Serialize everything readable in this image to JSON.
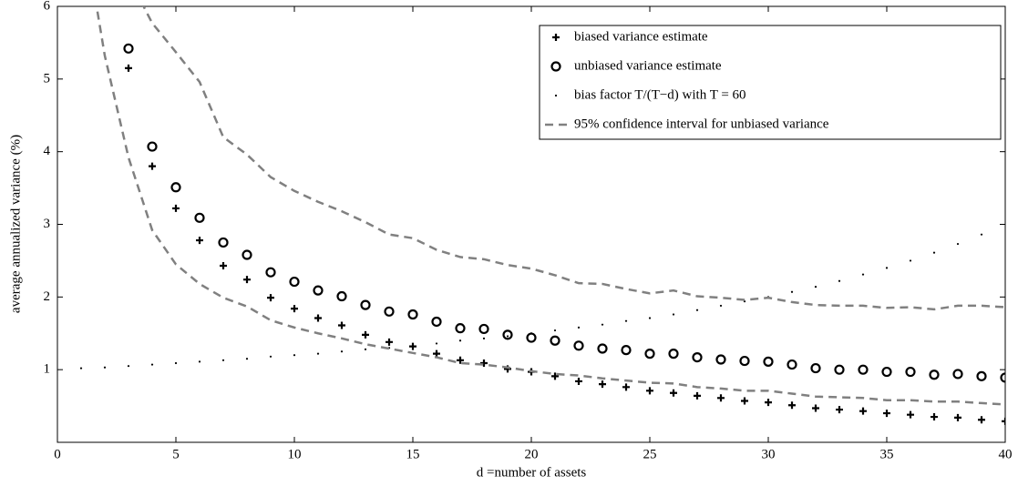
{
  "chart_data": {
    "type": "scatter",
    "xlabel": "d =number of assets",
    "ylabel": "average annualized variance (%)",
    "xlim": [
      0,
      40
    ],
    "ylim": [
      0,
      6
    ],
    "xticks": [
      0,
      5,
      10,
      15,
      20,
      25,
      30,
      35,
      40
    ],
    "yticks": [
      1,
      2,
      3,
      4,
      5,
      6
    ],
    "legend": "upper right",
    "series": [
      {
        "name": "biased variance estimate",
        "marker": "plus",
        "color": "#000000",
        "x": [
          3,
          4,
          5,
          6,
          7,
          8,
          9,
          10,
          11,
          12,
          13,
          14,
          15,
          16,
          17,
          18,
          19,
          20,
          21,
          22,
          23,
          24,
          25,
          26,
          27,
          28,
          29,
          30,
          31,
          32,
          33,
          34,
          35,
          36,
          37,
          38,
          39,
          40
        ],
        "values": [
          5.15,
          3.8,
          3.22,
          2.78,
          2.43,
          2.24,
          1.99,
          1.84,
          1.71,
          1.61,
          1.48,
          1.38,
          1.32,
          1.22,
          1.13,
          1.09,
          1.01,
          0.97,
          0.91,
          0.84,
          0.8,
          0.76,
          0.71,
          0.68,
          0.64,
          0.61,
          0.57,
          0.55,
          0.51,
          0.47,
          0.45,
          0.43,
          0.4,
          0.38,
          0.35,
          0.34,
          0.31,
          0.29
        ]
      },
      {
        "name": "unbiased variance estimate",
        "marker": "circle",
        "color": "#000000",
        "x": [
          3,
          4,
          5,
          6,
          7,
          8,
          9,
          10,
          11,
          12,
          13,
          14,
          15,
          16,
          17,
          18,
          19,
          20,
          21,
          22,
          23,
          24,
          25,
          26,
          27,
          28,
          29,
          30,
          31,
          32,
          33,
          34,
          35,
          36,
          37,
          38,
          39,
          40
        ],
        "values": [
          5.42,
          4.07,
          3.51,
          3.09,
          2.75,
          2.58,
          2.34,
          2.21,
          2.09,
          2.01,
          1.89,
          1.8,
          1.76,
          1.66,
          1.57,
          1.56,
          1.48,
          1.44,
          1.4,
          1.33,
          1.29,
          1.27,
          1.22,
          1.22,
          1.17,
          1.14,
          1.12,
          1.11,
          1.07,
          1.02,
          1.0,
          1.0,
          0.97,
          0.97,
          0.93,
          0.94,
          0.91,
          0.89
        ]
      },
      {
        "name": "bias factor T/(T−d) with T = 60",
        "marker": "dot",
        "color": "#000000",
        "x": [
          1,
          2,
          3,
          4,
          5,
          6,
          7,
          8,
          9,
          10,
          11,
          12,
          13,
          14,
          15,
          16,
          17,
          18,
          19,
          20,
          21,
          22,
          23,
          24,
          25,
          26,
          27,
          28,
          29,
          30,
          31,
          32,
          33,
          34,
          35,
          36,
          37,
          38,
          39
        ],
        "values": [
          1.02,
          1.03,
          1.05,
          1.07,
          1.09,
          1.11,
          1.13,
          1.15,
          1.18,
          1.2,
          1.22,
          1.25,
          1.28,
          1.3,
          1.33,
          1.36,
          1.4,
          1.43,
          1.46,
          1.5,
          1.54,
          1.58,
          1.62,
          1.67,
          1.71,
          1.76,
          1.82,
          1.88,
          1.94,
          2.0,
          2.07,
          2.14,
          2.22,
          2.31,
          2.4,
          2.5,
          2.61,
          2.73,
          2.86
        ]
      },
      {
        "name": "95% confidence interval for unbiased variance",
        "marker": "dashed",
        "color": "#808080",
        "x": [
          3,
          4,
          5,
          6,
          7,
          8,
          9,
          10,
          11,
          12,
          13,
          14,
          15,
          16,
          17,
          18,
          19,
          20,
          21,
          22,
          23,
          24,
          25,
          26,
          27,
          28,
          29,
          30,
          31,
          32,
          33,
          34,
          35,
          36,
          37,
          38,
          39,
          40
        ],
        "values": [
          6.4,
          5.77,
          5.37,
          4.96,
          4.2,
          3.96,
          3.65,
          3.46,
          3.31,
          3.18,
          3.03,
          2.86,
          2.81,
          2.65,
          2.55,
          2.52,
          2.44,
          2.39,
          2.3,
          2.19,
          2.18,
          2.11,
          2.05,
          2.09,
          2.01,
          1.99,
          1.96,
          1.99,
          1.93,
          1.89,
          1.88,
          1.88,
          1.85,
          1.86,
          1.83,
          1.88,
          1.88,
          1.86
        ]
      },
      {
        "marker": "dashed",
        "color": "#808080",
        "x": [
          1.5,
          2,
          3,
          4,
          5,
          6,
          7,
          8,
          9,
          10,
          11,
          12,
          13,
          14,
          15,
          16,
          17,
          18,
          19,
          20,
          21,
          22,
          23,
          24,
          25,
          26,
          27,
          28,
          29,
          30,
          31,
          32,
          33,
          34,
          35,
          36,
          37,
          38,
          39,
          40
        ],
        "values": [
          6.3,
          5.32,
          3.92,
          2.92,
          2.45,
          2.18,
          1.99,
          1.87,
          1.68,
          1.58,
          1.5,
          1.43,
          1.35,
          1.29,
          1.23,
          1.17,
          1.09,
          1.07,
          1.03,
          0.98,
          0.94,
          0.92,
          0.88,
          0.85,
          0.82,
          0.81,
          0.76,
          0.74,
          0.71,
          0.71,
          0.67,
          0.63,
          0.62,
          0.61,
          0.58,
          0.58,
          0.56,
          0.56,
          0.54,
          0.52
        ]
      }
    ]
  }
}
